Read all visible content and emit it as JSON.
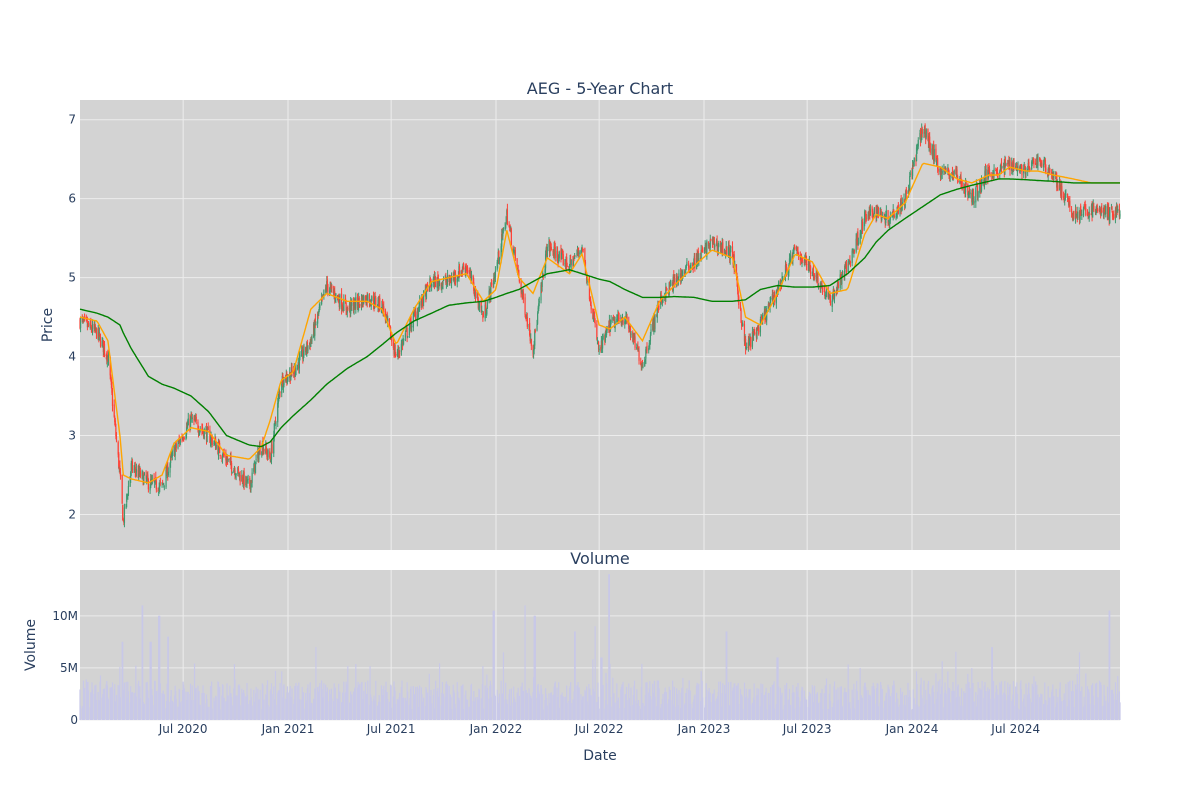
{
  "title": "AEG - 5-Year Chart",
  "colors": {
    "plot_bg": "#d3d3d3",
    "grid": "#ececec",
    "up": "#3d9970",
    "down": "#ff4136",
    "sma_short": "#ffa500",
    "sma_long": "#008000",
    "volume_bar": "#c8c8e8",
    "text": "#2a3f5f"
  },
  "price_panel": {
    "ylabel": "Price",
    "yticks": [
      2,
      3,
      4,
      5,
      6,
      7
    ],
    "ylim": [
      1.55,
      7.25
    ]
  },
  "volume_panel": {
    "title": "Volume",
    "ylabel": "Volume",
    "yticks": [
      0,
      5000000,
      10000000
    ],
    "ytick_labels": [
      "0",
      "5M",
      "10M"
    ],
    "ylim": [
      0,
      14400000
    ]
  },
  "x_axis": {
    "xlabel": "Date",
    "range": [
      "2020-01-02",
      "2024-12-31"
    ],
    "ticks": [
      "2020-07-01",
      "2021-01-01",
      "2021-07-01",
      "2022-01-01",
      "2022-07-01",
      "2023-01-01",
      "2023-07-01",
      "2024-01-01",
      "2024-07-01"
    ],
    "tick_labels": [
      "Jul 2020",
      "Jan 2021",
      "Jul 2021",
      "Jan 2022",
      "Jul 2022",
      "Jan 2023",
      "Jul 2023",
      "Jan 2024",
      "Jul 2024"
    ]
  },
  "chart_data": {
    "type": "candlestick",
    "price_anchors": {
      "dates": [
        "2020-01-02",
        "2020-02-01",
        "2020-02-20",
        "2020-03-12",
        "2020-03-18",
        "2020-04-01",
        "2020-05-01",
        "2020-05-25",
        "2020-06-15",
        "2020-07-15",
        "2020-08-15",
        "2020-09-15",
        "2020-10-25",
        "2020-11-15",
        "2020-12-01",
        "2020-12-20",
        "2021-01-10",
        "2021-02-10",
        "2021-03-10",
        "2021-04-15",
        "2021-05-20",
        "2021-06-15",
        "2021-07-10",
        "2021-08-10",
        "2021-09-10",
        "2021-10-10",
        "2021-11-10",
        "2021-12-10",
        "2022-01-01",
        "2022-01-20",
        "2022-02-10",
        "2022-03-07",
        "2022-04-01",
        "2022-05-10",
        "2022-06-01",
        "2022-07-01",
        "2022-07-20",
        "2022-08-15",
        "2022-09-15",
        "2022-10-15",
        "2022-11-10",
        "2022-12-15",
        "2023-01-15",
        "2023-02-20",
        "2023-03-15",
        "2023-04-10",
        "2023-05-10",
        "2023-06-10",
        "2023-07-10",
        "2023-08-10",
        "2023-09-10",
        "2023-10-10",
        "2023-10-30",
        "2023-11-20",
        "2023-12-20",
        "2024-01-20",
        "2024-02-20",
        "2024-03-20",
        "2024-04-15",
        "2024-05-15",
        "2024-06-01",
        "2024-06-20",
        "2024-07-20",
        "2024-08-10",
        "2024-09-05",
        "2024-10-10",
        "2024-11-10",
        "2024-12-01",
        "2024-12-12",
        "2024-12-31"
      ],
      "close": [
        4.45,
        4.3,
        4.0,
        2.5,
        1.9,
        2.6,
        2.4,
        2.35,
        2.8,
        3.2,
        3.0,
        2.7,
        2.35,
        2.9,
        2.7,
        3.7,
        3.8,
        4.2,
        4.9,
        4.6,
        4.75,
        4.65,
        4.0,
        4.5,
        4.95,
        4.95,
        5.15,
        4.5,
        5.1,
        5.8,
        5.0,
        4.1,
        5.4,
        5.15,
        5.4,
        4.05,
        4.4,
        4.5,
        3.9,
        4.7,
        4.95,
        5.2,
        5.45,
        5.3,
        4.1,
        4.4,
        4.85,
        5.35,
        5.1,
        4.7,
        5.15,
        5.75,
        5.85,
        5.75,
        6.0,
        6.9,
        6.35,
        6.3,
        6.0,
        6.35,
        6.35,
        6.45,
        6.35,
        6.5,
        6.3,
        5.8,
        5.85,
        5.85,
        5.8,
        5.85
      ],
      "sma_short": [
        4.5,
        4.45,
        4.2,
        3.0,
        2.5,
        2.45,
        2.4,
        2.5,
        2.9,
        3.1,
        3.05,
        2.75,
        2.7,
        2.85,
        3.2,
        3.7,
        3.8,
        4.6,
        4.8,
        4.7,
        4.7,
        4.6,
        4.15,
        4.6,
        4.95,
        5.0,
        5.05,
        4.7,
        4.85,
        5.6,
        5.0,
        4.8,
        5.25,
        5.05,
        5.3,
        4.4,
        4.35,
        4.5,
        4.2,
        4.7,
        4.9,
        5.15,
        5.35,
        5.25,
        4.5,
        4.4,
        4.8,
        5.3,
        5.2,
        4.8,
        4.85,
        5.55,
        5.8,
        5.75,
        5.95,
        6.45,
        6.4,
        6.25,
        6.2,
        6.3,
        6.3,
        6.4,
        6.35,
        6.35,
        6.3,
        6.25,
        6.2,
        6.2,
        6.2,
        6.2
      ],
      "sma_long": [
        4.6,
        4.55,
        4.5,
        4.4,
        4.3,
        4.1,
        3.75,
        3.65,
        3.6,
        3.5,
        3.3,
        3.0,
        2.88,
        2.86,
        2.92,
        3.1,
        3.25,
        3.45,
        3.65,
        3.85,
        4.0,
        4.15,
        4.3,
        4.45,
        4.55,
        4.65,
        4.68,
        4.7,
        4.75,
        4.8,
        4.85,
        4.95,
        5.05,
        5.1,
        5.05,
        4.98,
        4.95,
        4.85,
        4.75,
        4.75,
        4.76,
        4.75,
        4.7,
        4.7,
        4.72,
        4.85,
        4.9,
        4.88,
        4.88,
        4.9,
        5.05,
        5.25,
        5.45,
        5.6,
        5.75,
        5.9,
        6.05,
        6.12,
        6.17,
        6.22,
        6.25,
        6.25,
        6.24,
        6.23,
        6.22,
        6.2,
        6.2,
        6.2,
        6.2,
        6.2
      ]
    },
    "volume_note": "daily volume, mostly 1M-4M with spikes up to ~13M",
    "volume_spikes": {
      "dates": [
        "2020-03-16",
        "2020-04-20",
        "2020-05-05",
        "2020-05-20",
        "2020-06-05",
        "2021-02-20",
        "2021-12-28",
        "2022-01-15",
        "2022-02-20",
        "2022-03-10",
        "2022-05-20",
        "2022-06-25",
        "2022-07-05",
        "2022-07-18",
        "2023-02-10",
        "2023-05-10",
        "2024-05-20",
        "2024-10-20",
        "2024-12-13"
      ],
      "values": [
        7500000,
        11000000,
        7500000,
        10000000,
        8000000,
        7000000,
        10500000,
        6500000,
        11000000,
        10000000,
        8500000,
        9000000,
        6000000,
        14000000,
        8500000,
        6000000,
        7000000,
        6500000,
        10500000
      ]
    }
  }
}
